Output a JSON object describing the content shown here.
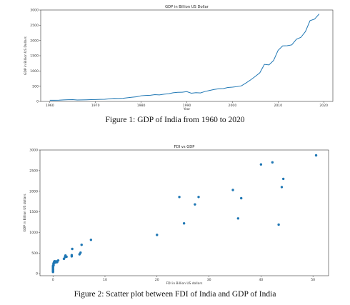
{
  "captions": {
    "figure1": "Figure 1: GDP of India from 1960 to 2020",
    "figure2": "Figure 2: Scatter plot between FDI of India and GDP of India"
  },
  "chart_data": [
    {
      "type": "line",
      "title": "GDP in Billion US Dollar",
      "xlabel": "Year",
      "ylabel": "GDP in Billion US Dollars",
      "xlim": [
        1958,
        2022
      ],
      "ylim": [
        0,
        3000
      ],
      "xticks": [
        1960,
        1970,
        1980,
        1990,
        2000,
        2010,
        2020
      ],
      "yticks": [
        0,
        500,
        1000,
        1500,
        2000,
        2500,
        3000
      ],
      "color": "#1f77b4",
      "grid": false,
      "series": [
        {
          "x": [
            1960,
            1961,
            1962,
            1963,
            1964,
            1965,
            1966,
            1967,
            1968,
            1969,
            1970,
            1971,
            1972,
            1973,
            1974,
            1975,
            1976,
            1977,
            1978,
            1979,
            1980,
            1981,
            1982,
            1983,
            1984,
            1985,
            1986,
            1987,
            1988,
            1989,
            1990,
            1991,
            1992,
            1993,
            1994,
            1995,
            1996,
            1997,
            1998,
            1999,
            2000,
            2001,
            2002,
            2003,
            2004,
            2005,
            2006,
            2007,
            2008,
            2009,
            2010,
            2011,
            2012,
            2013,
            2014,
            2015,
            2016,
            2017,
            2018,
            2019
          ],
          "y": [
            37,
            39,
            42,
            49,
            56,
            59,
            46,
            50,
            53,
            58,
            62,
            67,
            71,
            85,
            99,
            98,
            102,
            121,
            137,
            153,
            186,
            196,
            203,
            222,
            215,
            236,
            253,
            283,
            299,
            301,
            321,
            270,
            288,
            279,
            327,
            360,
            392,
            415,
            421,
            458,
            468,
            485,
            514,
            607,
            709,
            820,
            940,
            1216,
            1198,
            1341,
            1675,
            1823,
            1827,
            1856,
            2039,
            2103,
            2294,
            2651,
            2702,
            2870
          ]
        }
      ]
    },
    {
      "type": "scatter",
      "title": "FDI vs GDP",
      "xlabel": "FDI in Billion US dollars",
      "ylabel": "GDP in Billion US dollars",
      "xlim": [
        -2.5,
        53
      ],
      "ylim": [
        -50,
        3000
      ],
      "xticks": [
        0,
        10,
        20,
        30,
        40,
        50
      ],
      "yticks": [
        0,
        500,
        1000,
        1500,
        2000,
        2500,
        3000
      ],
      "color": "#1f77b4",
      "grid": false,
      "x": [
        0.0,
        0.0,
        0.0,
        0.0,
        0.0,
        0.0,
        0.0,
        0.0,
        0.0,
        0.0,
        0.1,
        0.1,
        0.1,
        0.1,
        0.2,
        0.2,
        0.2,
        0.3,
        0.3,
        0.3,
        0.4,
        0.5,
        0.6,
        0.8,
        1.0,
        2.1,
        2.3,
        2.4,
        2.6,
        3.6,
        3.6,
        3.7,
        5.1,
        5.3,
        5.5,
        7.3,
        20.0,
        24.3,
        25.2,
        27.3,
        28.0,
        34.6,
        35.6,
        36.2,
        40.0,
        42.2,
        43.4,
        44.0,
        44.3,
        50.6
      ],
      "y": [
        40,
        60,
        70,
        90,
        100,
        120,
        140,
        150,
        170,
        190,
        200,
        210,
        230,
        250,
        260,
        270,
        280,
        290,
        300,
        300,
        280,
        270,
        300,
        280,
        320,
        360,
        400,
        440,
        410,
        420,
        450,
        600,
        470,
        510,
        700,
        820,
        940,
        1860,
        1220,
        1680,
        1860,
        2030,
        1340,
        1830,
        2650,
        2700,
        1190,
        2100,
        2300,
        2870
      ]
    }
  ]
}
